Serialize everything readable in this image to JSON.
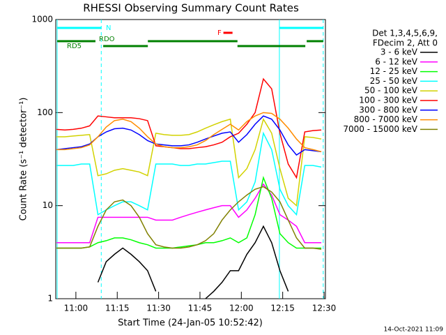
{
  "chart_data": {
    "type": "line",
    "title": "RHESSI Observing Summary Count Rates",
    "xlabel": "Start Time (24-Jan-05 10:52:42)",
    "ylabel": "Count Rate (s⁻¹ detector⁻¹)",
    "yscale": "log",
    "ylim": [
      1,
      1000
    ],
    "yticks": [
      1,
      10,
      100,
      1000
    ],
    "xlim": [
      652.7,
      750.5
    ],
    "xticks": [
      {
        "value": 660,
        "label": "11:00"
      },
      {
        "value": 675,
        "label": "11:15"
      },
      {
        "value": 690,
        "label": "11:30"
      },
      {
        "value": 705,
        "label": "11:45"
      },
      {
        "value": 720,
        "label": "12:00"
      },
      {
        "value": 735,
        "label": "12:15"
      },
      {
        "value": 750,
        "label": "12:30"
      }
    ],
    "legend_header": [
      "Det 1,3,4,5,6,9,",
      "FDecim 2, Att 0"
    ],
    "footer": "14-Oct-2021 11:09",
    "x": [
      653,
      656,
      659,
      662,
      665,
      668,
      671,
      674,
      677,
      680,
      683,
      686,
      689,
      692,
      695,
      698,
      701,
      704,
      707,
      710,
      713,
      716,
      719,
      722,
      725,
      728,
      731,
      734,
      737,
      740,
      743,
      746,
      749
    ],
    "series": [
      {
        "name": "3 - 6 keV",
        "color": "#000000",
        "values": [
          null,
          null,
          null,
          null,
          null,
          1.5,
          2.5,
          3,
          3.5,
          3,
          2.5,
          2,
          1.2,
          null,
          null,
          null,
          null,
          null,
          1,
          1.2,
          1.5,
          2,
          2,
          3,
          4,
          6,
          4,
          2,
          1.2,
          null,
          null,
          null,
          null
        ]
      },
      {
        "name": "6 - 12 keV",
        "color": "#ff00ff",
        "values": [
          4,
          4,
          4,
          4,
          4,
          7.5,
          7.5,
          7.5,
          7.5,
          7.5,
          7.5,
          7.5,
          7,
          7,
          7,
          7.5,
          8,
          8.5,
          9,
          9.5,
          10,
          10,
          7.5,
          9,
          12,
          17,
          13,
          8,
          7,
          6,
          4,
          4,
          4
        ]
      },
      {
        "name": "12 - 25 keV",
        "color": "#00ff00",
        "values": [
          3.5,
          3.5,
          3.5,
          3.5,
          3.6,
          4,
          4.2,
          4.5,
          4.5,
          4.3,
          4,
          3.8,
          3.5,
          3.5,
          3.5,
          3.6,
          3.7,
          3.8,
          4,
          4,
          4.2,
          4.5,
          4,
          4.5,
          8,
          20,
          12,
          5,
          4,
          3.5,
          3.5,
          3.5,
          3.5
        ]
      },
      {
        "name": "25 - 50 keV",
        "color": "#00ffff",
        "values": [
          27,
          27,
          27,
          28,
          28,
          8,
          9,
          10,
          11,
          11,
          10,
          9,
          28,
          28,
          28,
          27,
          27,
          28,
          28,
          29,
          30,
          30,
          9,
          11,
          18,
          60,
          40,
          15,
          10,
          8,
          27,
          27,
          26
        ]
      },
      {
        "name": "50 - 100 keV",
        "color": "#d2d200",
        "values": [
          55,
          55,
          56,
          57,
          58,
          21,
          22,
          24,
          25,
          24,
          23,
          21,
          60,
          58,
          57,
          57,
          58,
          62,
          68,
          74,
          80,
          85,
          20,
          25,
          40,
          85,
          60,
          25,
          12,
          10,
          55,
          54,
          52
        ]
      },
      {
        "name": "100 - 300 keV",
        "color": "#ff0000",
        "values": [
          66,
          65,
          66,
          68,
          72,
          92,
          90,
          88,
          88,
          88,
          86,
          82,
          44,
          43,
          42,
          41,
          41,
          42,
          43,
          45,
          48,
          55,
          60,
          75,
          100,
          230,
          180,
          60,
          28,
          20,
          62,
          64,
          65
        ]
      },
      {
        "name": "300 - 800 keV",
        "color": "#0000ff",
        "values": [
          40,
          41,
          42,
          43,
          46,
          55,
          62,
          67,
          68,
          65,
          58,
          50,
          46,
          45,
          44,
          44,
          45,
          48,
          52,
          56,
          60,
          62,
          48,
          58,
          75,
          92,
          85,
          65,
          45,
          35,
          40,
          39,
          38
        ]
      },
      {
        "name": "800 - 7000 keV",
        "color": "#ff8c00",
        "values": [
          40,
          40,
          41,
          42,
          45,
          55,
          70,
          82,
          85,
          80,
          68,
          55,
          46,
          43,
          42,
          42,
          43,
          45,
          50,
          58,
          66,
          75,
          65,
          80,
          92,
          100,
          98,
          85,
          68,
          52,
          42,
          40,
          38
        ]
      },
      {
        "name": "7000 - 15000 keV",
        "color": "#808000",
        "values": [
          3.5,
          3.5,
          3.5,
          3.5,
          3.6,
          6,
          9,
          11,
          11.5,
          10,
          7.5,
          5,
          3.8,
          3.6,
          3.5,
          3.5,
          3.6,
          3.8,
          4.2,
          5,
          7,
          9,
          11,
          13,
          15,
          16,
          14,
          11,
          7,
          4.5,
          3.5,
          3.5,
          3.4
        ]
      }
    ],
    "flags": [
      {
        "label": "N",
        "color": "#00ffff",
        "segments": [
          [
            653.2,
            669.2
          ],
          [
            733.8,
            749.7
          ]
        ]
      },
      {
        "label": "F",
        "color": "#ff0000",
        "segments": [
          [
            713.5,
            716.8
          ]
        ]
      },
      {
        "label": "RDO",
        "color": "#008000",
        "segments": [
          [
            653.2,
            667.1
          ],
          [
            686.1,
            718.6
          ],
          [
            743.7,
            749.7
          ]
        ]
      },
      {
        "label": "RD5",
        "color": "#008000",
        "segments": [
          [
            669.9,
            686.1
          ],
          [
            718.6,
            743.2
          ]
        ]
      }
    ]
  }
}
